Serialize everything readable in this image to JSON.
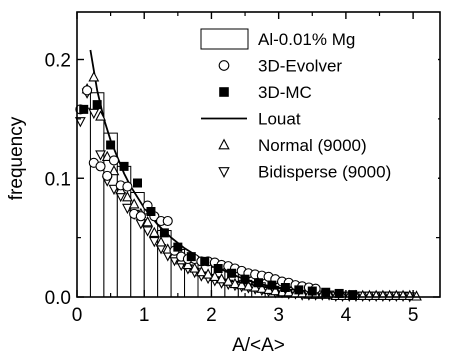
{
  "chart_data": {
    "type": "bar",
    "xlabel": "A/<A>",
    "ylabel": "frequency",
    "xlim": [
      0,
      5.4
    ],
    "ylim": [
      0,
      0.24
    ],
    "x_ticks": [
      "0",
      "1",
      "2",
      "3",
      "4",
      "5"
    ],
    "y_ticks": [
      "0.0",
      "0.1",
      "0.2"
    ],
    "legend_position": "top-right",
    "histogram": {
      "name": "Al-0.01% Mg",
      "bin_width": 0.2,
      "bin_starts": [
        0.0,
        0.2,
        0.4,
        0.6,
        0.8,
        1.0,
        1.2,
        1.4,
        1.6,
        1.8,
        2.0,
        2.2,
        2.4,
        2.6,
        2.8,
        3.0,
        3.2,
        3.4,
        3.6,
        3.8,
        4.0,
        4.2,
        4.4,
        4.6,
        4.8
      ],
      "values": [
        0.159,
        0.172,
        0.138,
        0.11,
        0.088,
        0.07,
        0.056,
        0.04,
        0.031,
        0.028,
        0.025,
        0.021,
        0.014,
        0.012,
        0.009,
        0.008,
        0.006,
        0.005,
        0.004,
        0.003,
        0.002,
        0.002,
        0.002,
        0.001,
        0.001
      ]
    },
    "series": [
      {
        "name": "3D-Evolver",
        "marker": "open-circle",
        "x": [
          0.05,
          0.15,
          0.25,
          0.35,
          0.45,
          0.55,
          0.65,
          0.75,
          0.85,
          0.95,
          1.05,
          1.15,
          1.25,
          1.35,
          1.45,
          1.55,
          1.65,
          1.75,
          1.85,
          1.95,
          2.05,
          2.15,
          2.25,
          2.35,
          2.45,
          2.55,
          2.65,
          2.75,
          2.85,
          2.95,
          3.05,
          3.15,
          3.25,
          3.35,
          3.45,
          3.55
        ],
        "y": [
          0.158,
          0.174,
          0.113,
          0.11,
          0.102,
          0.115,
          0.094,
          0.093,
          0.07,
          0.068,
          0.077,
          0.068,
          0.064,
          0.064,
          0.039,
          0.034,
          0.032,
          0.032,
          0.03,
          0.03,
          0.029,
          0.027,
          0.026,
          0.024,
          0.022,
          0.02,
          0.019,
          0.018,
          0.017,
          0.015,
          0.013,
          0.012,
          0.01,
          0.009,
          0.008,
          0.007
        ]
      },
      {
        "name": "3D-MC",
        "marker": "filled-square",
        "x": [
          0.1,
          0.3,
          0.5,
          0.7,
          0.9,
          1.1,
          1.3,
          1.5,
          1.7,
          1.9,
          2.1,
          2.3,
          2.5,
          2.7,
          2.9,
          3.1,
          3.3,
          3.5,
          3.7,
          3.9,
          4.1
        ],
        "y": [
          0.158,
          0.162,
          0.128,
          0.11,
          0.096,
          0.072,
          0.054,
          0.042,
          0.034,
          0.03,
          0.024,
          0.02,
          0.015,
          0.012,
          0.01,
          0.008,
          0.006,
          0.005,
          0.004,
          0.003,
          0.002
        ]
      },
      {
        "name": "Louat",
        "marker": "line",
        "x": [
          0.2,
          0.3,
          0.4,
          0.5,
          0.6,
          0.7,
          0.8,
          0.9,
          1.0,
          1.2,
          1.4,
          1.6,
          1.8,
          2.0,
          2.2,
          2.4,
          2.6,
          2.8,
          3.0,
          3.3,
          3.6,
          4.0,
          4.4,
          4.8
        ],
        "y": [
          0.208,
          0.174,
          0.15,
          0.132,
          0.118,
          0.104,
          0.093,
          0.084,
          0.075,
          0.061,
          0.05,
          0.041,
          0.034,
          0.027,
          0.022,
          0.017,
          0.013,
          0.01,
          0.008,
          0.005,
          0.0035,
          0.002,
          0.001,
          0.0005
        ]
      },
      {
        "name": "Normal (9000)",
        "marker": "open-triangle-up",
        "x": [
          0.15,
          0.25,
          0.35,
          0.45,
          0.55,
          0.65,
          0.75,
          0.85,
          0.95,
          1.05,
          1.15,
          1.25,
          1.35,
          1.45,
          1.55,
          1.65,
          1.75,
          1.85,
          1.95,
          2.05,
          2.15,
          2.25,
          2.35,
          2.45,
          2.55,
          2.65,
          2.75,
          2.85,
          2.95,
          3.05,
          3.15,
          3.25,
          3.35,
          3.45,
          3.55,
          3.65,
          3.75,
          3.85,
          3.95,
          4.05,
          4.15,
          4.25,
          4.35,
          4.45,
          4.55,
          4.65,
          4.75,
          4.85,
          4.95,
          5.05
        ],
        "y": [
          0.175,
          0.185,
          0.152,
          0.118,
          0.106,
          0.09,
          0.084,
          0.078,
          0.07,
          0.063,
          0.054,
          0.046,
          0.04,
          0.036,
          0.031,
          0.027,
          0.024,
          0.021,
          0.019,
          0.017,
          0.015,
          0.013,
          0.011,
          0.01,
          0.009,
          0.008,
          0.007,
          0.006,
          0.005,
          0.004,
          0.004,
          0.003,
          0.003,
          0.002,
          0.002,
          0.002,
          0.002,
          0.001,
          0.001,
          0.001,
          0.001,
          0.001,
          0.001,
          0.001,
          0.001,
          0.001,
          0.001,
          0.001,
          0.001,
          0.0005
        ]
      },
      {
        "name": "Bidisperse (9000)",
        "marker": "open-triangle-down",
        "x": [
          0.05,
          0.15,
          0.25,
          0.35,
          0.45,
          0.55,
          0.65,
          0.75,
          0.85,
          0.95,
          1.05,
          1.15,
          1.25,
          1.35,
          1.45,
          1.55,
          1.65,
          1.75,
          1.85,
          1.95,
          2.05,
          2.15,
          2.25,
          2.35,
          2.45,
          2.55,
          2.65,
          2.75,
          2.85,
          2.95,
          3.05,
          3.15,
          3.25,
          3.35,
          3.45,
          3.55,
          3.65,
          3.75,
          3.85,
          3.95,
          4.05,
          4.15,
          4.25,
          4.35,
          4.45,
          4.55,
          4.65,
          4.75,
          4.85,
          4.95
        ],
        "y": [
          0.148,
          0.172,
          0.155,
          0.12,
          0.098,
          0.091,
          0.085,
          0.075,
          0.07,
          0.062,
          0.056,
          0.047,
          0.041,
          0.035,
          0.031,
          0.027,
          0.024,
          0.021,
          0.018,
          0.016,
          0.014,
          0.012,
          0.011,
          0.01,
          0.009,
          0.008,
          0.007,
          0.006,
          0.005,
          0.004,
          0.004,
          0.003,
          0.003,
          0.002,
          0.002,
          0.002,
          0.002,
          0.002,
          0.001,
          0.001,
          0.001,
          0.001,
          0.001,
          0.001,
          0.001,
          0.001,
          0.001,
          0.001,
          0.001,
          0.0005
        ]
      }
    ]
  }
}
